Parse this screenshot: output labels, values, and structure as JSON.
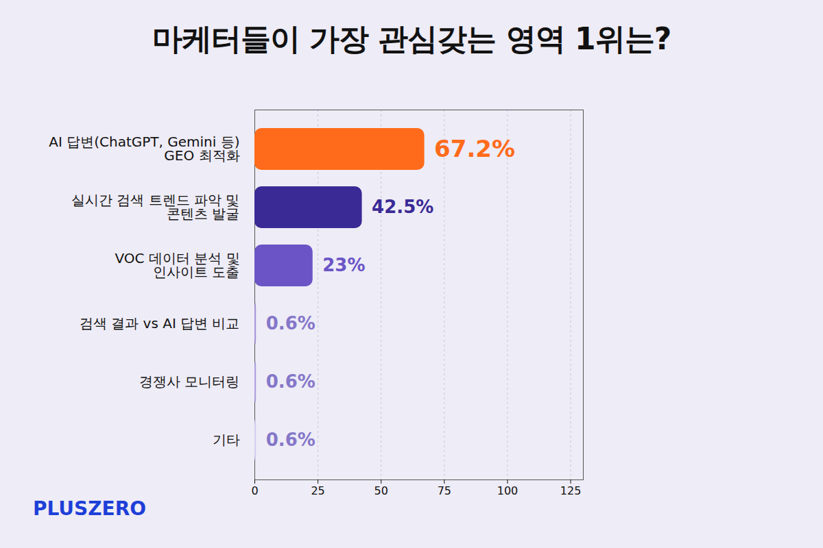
{
  "chart_data": {
    "type": "bar",
    "orientation": "horizontal",
    "title": "마케터들이 가장 관심갖는 영역 1위는?",
    "categories": [
      "AI 답변(ChatGPT, Gemini 등)\nGEO 최적화",
      "실시간 검색 트렌드 파악 및\n콘텐츠 발굴",
      "VOC 데이터 분석 및\n인사이트 도출",
      "검색 결과 vs AI 답변 비교",
      "경쟁사 모니터링",
      "기타"
    ],
    "values": [
      67.2,
      42.5,
      23,
      0.6,
      0.6,
      0.6
    ],
    "value_labels": [
      "67.2%",
      "42.5%",
      "23%",
      "0.6%",
      "0.6%",
      "0.6%"
    ],
    "colors": [
      "#ff6b1a",
      "#3a2a96",
      "#6b55c6",
      "#a898dc",
      "#b0a2e2",
      "#d6ceef"
    ],
    "xlim": [
      0,
      130
    ],
    "xticks": [
      0,
      25,
      50,
      75,
      100,
      125
    ],
    "grid": true,
    "data_labels": true,
    "source": "PLUSZERO"
  }
}
